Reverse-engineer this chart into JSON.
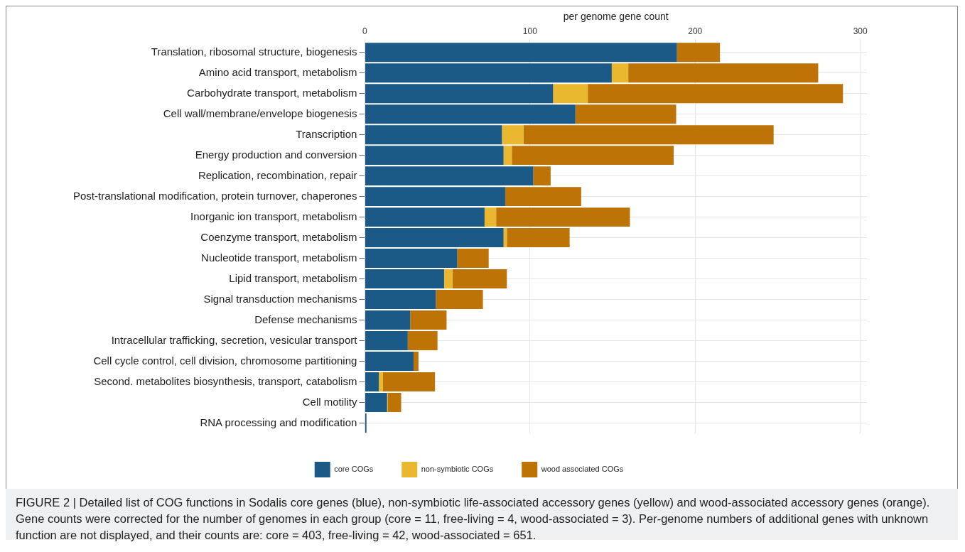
{
  "chart_data": {
    "type": "bar",
    "orientation": "horizontal",
    "stacked": true,
    "xlabel": "per genome gene count",
    "xlim": [
      0,
      304
    ],
    "xticks": [
      0,
      100,
      200,
      300
    ],
    "grid": true,
    "legend": "bottom",
    "categories": [
      "Translation, ribosomal structure, biogenesis",
      "Amino acid transport, metabolism",
      "Carbohydrate transport, metabolism",
      "Cell wall/membrane/envelope biogenesis",
      "Transcription",
      "Energy production and conversion",
      "Replication, recombination, repair",
      "Post-translational modification, protein turnover, chaperones",
      "Inorganic ion transport, metabolism",
      "Coenzyme transport, metabolism",
      "Nucleotide transport, metabolism",
      "Lipid transport, metabolism",
      "Signal transduction mechanisms",
      "Defense mechanisms",
      "Intracellular trafficking, secretion, vesicular transport",
      "Cell cycle control, cell division, chromosome partitioning",
      "Second. metabolites biosynthesis, transport, catabolism",
      "Cell motility",
      "RNA processing and modification"
    ],
    "series": [
      {
        "name": "core COGs",
        "color": "#1b5a87",
        "values": [
          189,
          149.5,
          114,
          127.5,
          83,
          84,
          102,
          85,
          72.5,
          84,
          56,
          48,
          43,
          27.5,
          26,
          29.5,
          8.5,
          13.5,
          1
        ]
      },
      {
        "name": "non-symbiotic COGs",
        "color": "#e9b82f",
        "values": [
          0,
          10,
          21,
          0,
          13,
          5,
          0,
          0,
          7,
          2,
          0,
          5,
          0,
          0,
          0,
          0,
          2.5,
          0.5,
          0
        ]
      },
      {
        "name": "wood associated COGs",
        "color": "#bd7305",
        "values": [
          26,
          115,
          154.5,
          61,
          151.5,
          98,
          10.5,
          46,
          81,
          38,
          19,
          33,
          28.5,
          22,
          18,
          3,
          31.5,
          8,
          0
        ]
      }
    ],
    "annotations": [
      "FIGURE 2 | Detailed list of COG functions in Sodalis core genes (blue), non-symbiotic life-associated accessory genes (yellow) and wood-associated accessory genes (orange). Gene counts were corrected for the number of genomes in each group (core = 11, free-living = 4, wood-associated = 3). Per-genome numbers of additional genes with unknown function are not displayed, and their counts are: core = 403, free-living = 42, wood-associated = 651."
    ]
  }
}
